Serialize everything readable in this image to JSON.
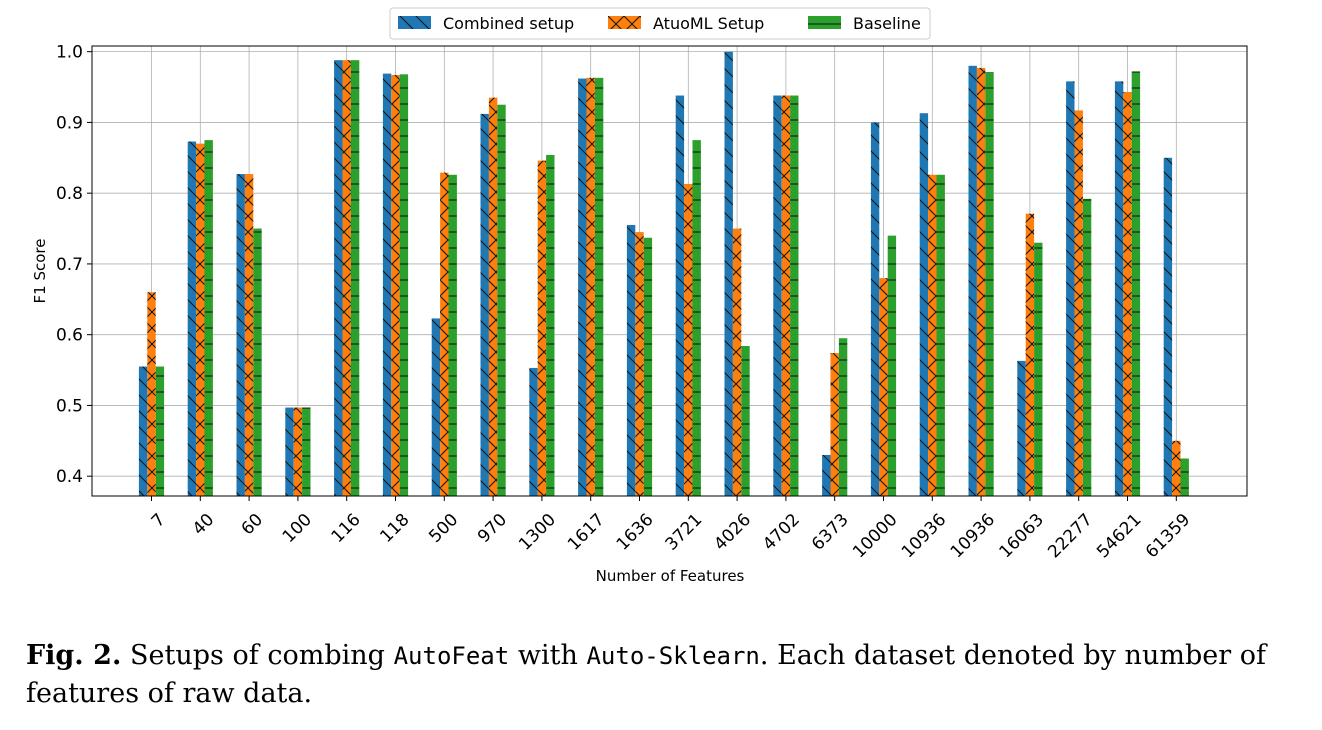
{
  "chart_data": {
    "type": "bar",
    "categories": [
      "7",
      "40",
      "60",
      "100",
      "116",
      "118",
      "500",
      "970",
      "1300",
      "1617",
      "1636",
      "3721",
      "4026",
      "4702",
      "6373",
      "10000",
      "10936",
      "10936",
      "16063",
      "22277",
      "54621",
      "61359"
    ],
    "series": [
      {
        "name": "Combined setup",
        "color": "#1f77b4",
        "hatch": "\\",
        "values": [
          0.555,
          0.873,
          0.827,
          0.497,
          0.988,
          0.969,
          0.623,
          0.912,
          0.553,
          0.962,
          0.755,
          0.938,
          1.0,
          0.938,
          0.43,
          0.9,
          0.913,
          0.98,
          0.563,
          0.958,
          0.958,
          0.85
        ]
      },
      {
        "name": "AtuoML Setup",
        "color": "#ff7f0e",
        "hatch": "x",
        "values": [
          0.66,
          0.87,
          0.827,
          0.497,
          0.988,
          0.967,
          0.829,
          0.935,
          0.846,
          0.963,
          0.745,
          0.813,
          0.75,
          0.938,
          0.574,
          0.68,
          0.826,
          0.977,
          0.771,
          0.917,
          0.943,
          0.45
        ]
      },
      {
        "name": "Baseline",
        "color": "#2ca02c",
        "hatch": "-",
        "values": [
          0.555,
          0.875,
          0.75,
          0.497,
          0.988,
          0.968,
          0.826,
          0.925,
          0.854,
          0.963,
          0.737,
          0.875,
          0.584,
          0.938,
          0.595,
          0.74,
          0.826,
          0.971,
          0.73,
          0.792,
          0.972,
          0.425
        ]
      }
    ],
    "xlabel": "Number of Features",
    "ylabel": "F1 Score",
    "ylim": [
      0.372,
      1.008
    ],
    "yticks": [
      "0.4",
      "0.5",
      "0.6",
      "0.7",
      "0.8",
      "0.9",
      "1.0"
    ],
    "grid": true,
    "legend_position": "top-center"
  },
  "caption": {
    "label": "Fig. 2.",
    "part1": " Setups of combing ",
    "code1": "AutoFeat",
    "part2": " with ",
    "code2": "Auto-Sklearn",
    "part3": ". Each dataset denoted by number of features of raw data."
  }
}
